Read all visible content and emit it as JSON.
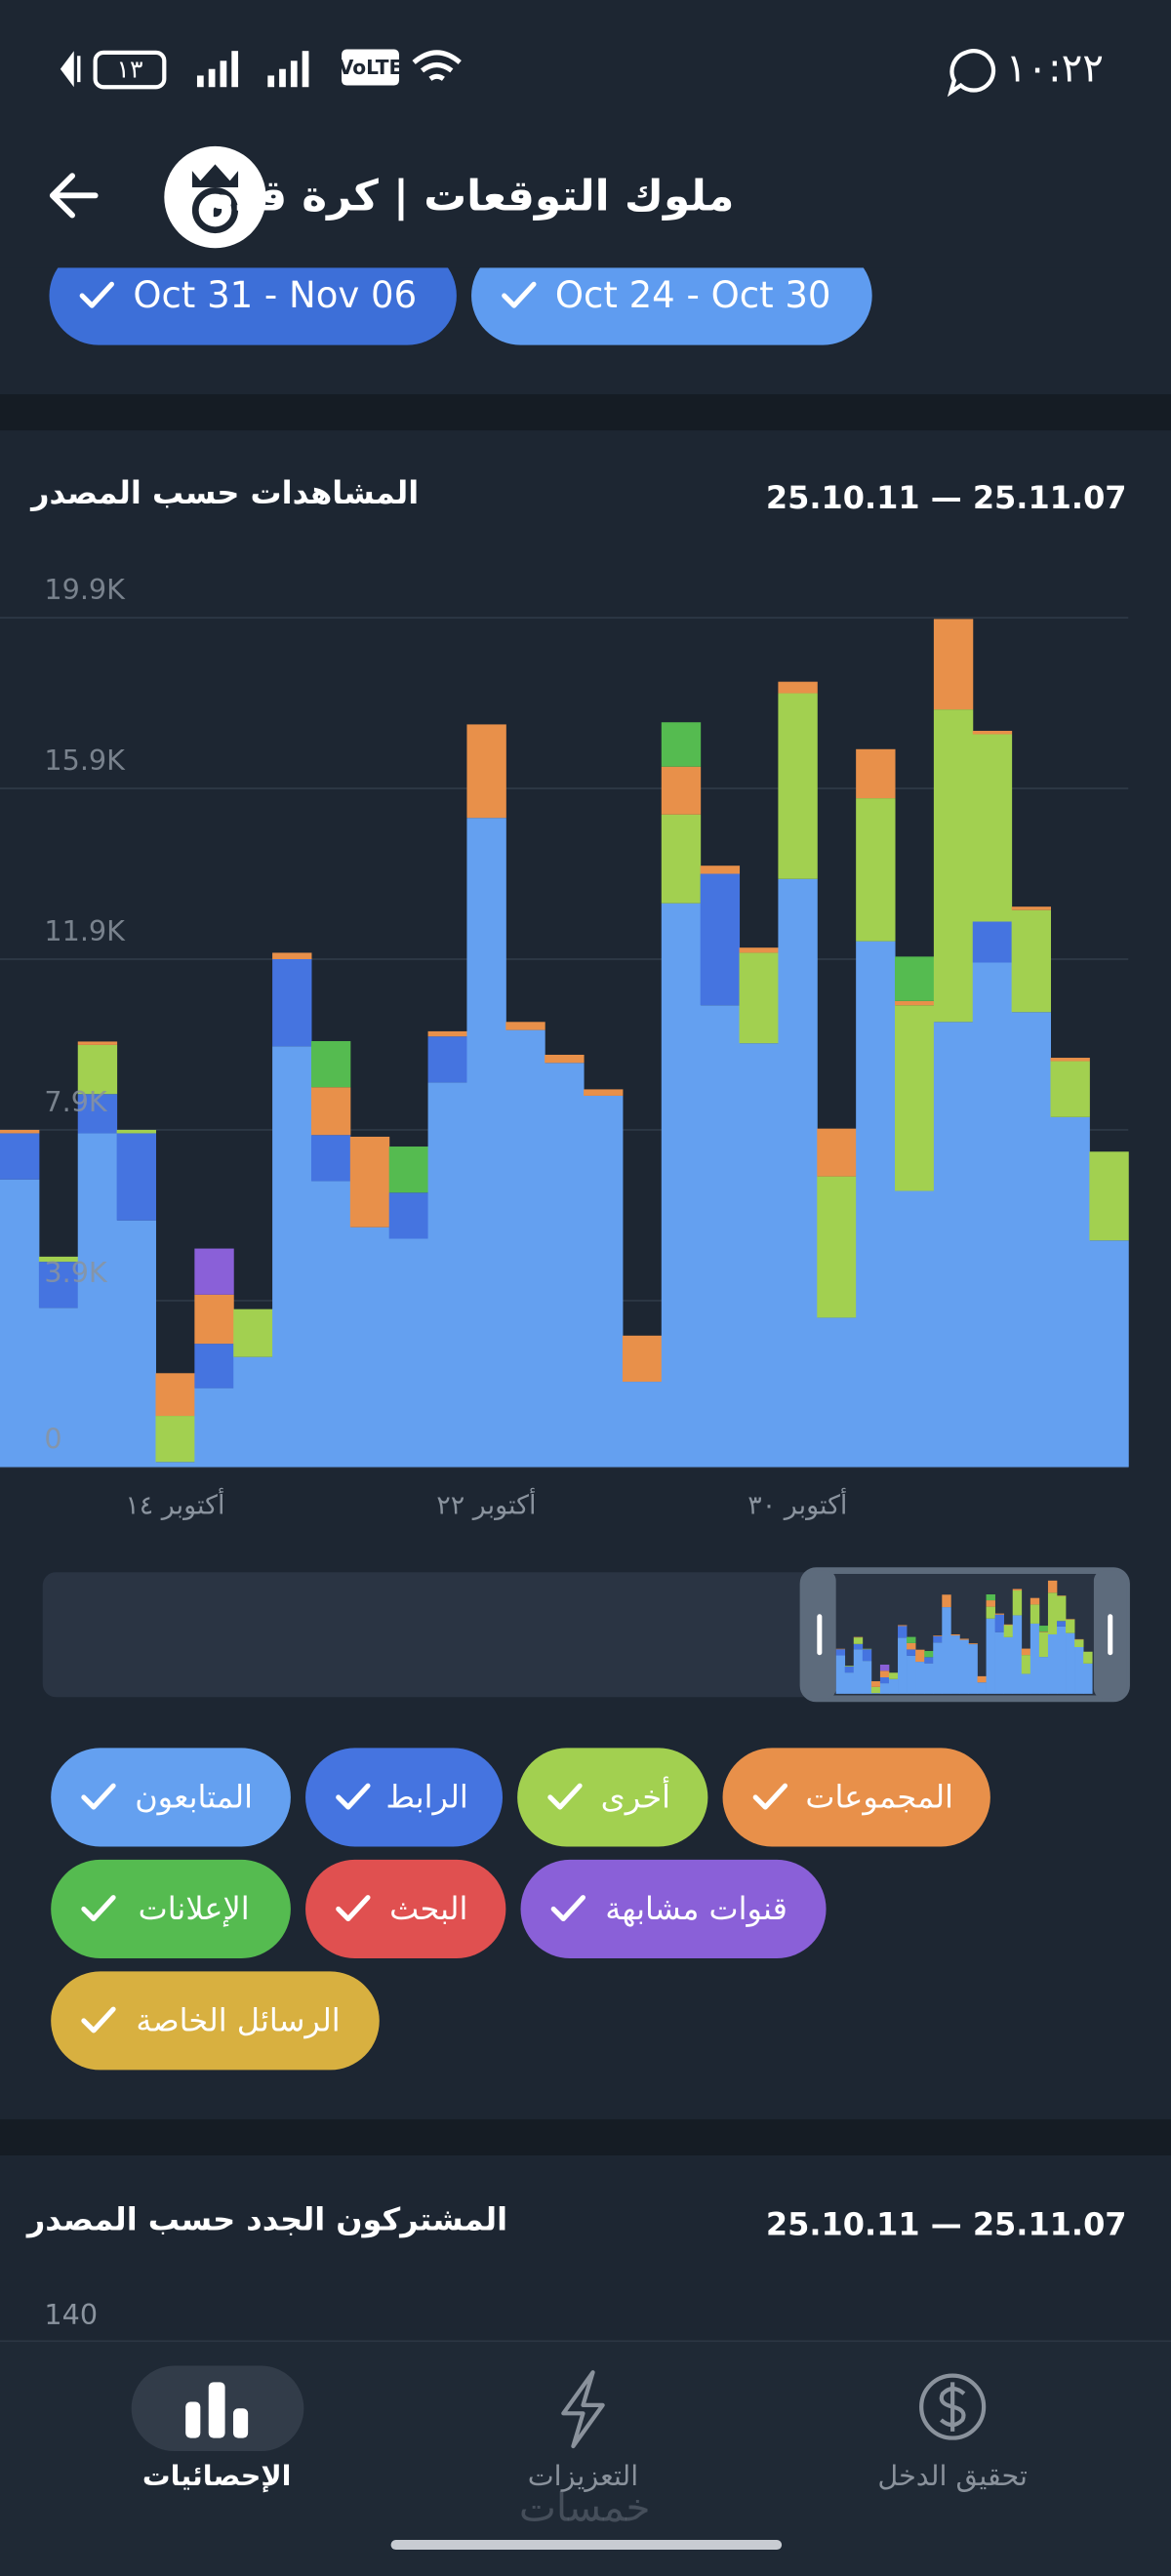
{
  "status_bar": {
    "time": "١٠:٢٢",
    "battery": "١٣",
    "network": "VoLTE"
  },
  "header": {
    "title": "ملوك التوقعات | كرة قدم"
  },
  "date_chips": [
    "Oct 31 - Nov 06",
    "Oct 24 - Oct 30"
  ],
  "views_chart": {
    "type": "bar",
    "stacked": true,
    "title": "المشاهدات حسب المصدر",
    "date_range": "25.10.11 — 25.11.07",
    "categories": [
      null,
      null,
      null,
      null,
      "أكتوبر ١٤",
      null,
      null,
      null,
      null,
      null,
      null,
      null,
      "أكتوبر ٢٢",
      null,
      null,
      null,
      null,
      null,
      null,
      null,
      "أكتوبر ٣٠",
      null,
      null,
      null,
      null,
      null,
      null,
      null,
      null
    ],
    "ylim": [
      0,
      19900
    ],
    "yticks": [
      0,
      {
        "value": 3900,
        "label": "3.9K"
      },
      {
        "value": 7900,
        "label": "7.9K"
      },
      {
        "value": 11900,
        "label": "11.9K"
      },
      {
        "value": 15900,
        "label": "15.9K"
      },
      {
        "value": 19900,
        "label": "19.9K"
      }
    ],
    "grid": true,
    "series": [
      {
        "name": "المتابعون",
        "color": "#64a0f0",
        "values": [
          6740,
          3730,
          7820,
          5780,
          120,
          1850,
          2580,
          9860,
          6700,
          5620,
          5350,
          9010,
          15210,
          10240,
          9470,
          8700,
          2000,
          13210,
          10820,
          9930,
          13780,
          3500,
          12320,
          6470,
          10430,
          11820,
          10660,
          8200,
          5310
        ]
      },
      {
        "name": "الرابط",
        "color": "#4574e0",
        "values": [
          1080,
          1080,
          920,
          2040,
          0,
          1040,
          0,
          2040,
          1080,
          0,
          1080,
          1080,
          0,
          0,
          0,
          0,
          0,
          0,
          3080,
          0,
          0,
          0,
          0,
          0,
          0,
          960,
          0,
          0,
          0
        ]
      },
      {
        "name": "أخرى",
        "color": "#a2d050",
        "values": [
          0,
          120,
          1150,
          80,
          1080,
          0,
          1120,
          0,
          0,
          0,
          0,
          0,
          0,
          0,
          0,
          0,
          0,
          2080,
          0,
          2120,
          4350,
          3310,
          3350,
          4350,
          7320,
          4390,
          2390,
          1310,
          2080
        ]
      },
      {
        "name": "المجموعات",
        "color": "#e8904a",
        "values": [
          80,
          0,
          80,
          0,
          1000,
          1150,
          0,
          150,
          1120,
          2120,
          0,
          120,
          2190,
          190,
          190,
          150,
          1080,
          1120,
          190,
          120,
          270,
          1120,
          1150,
          100,
          2120,
          80,
          80,
          80,
          0
        ]
      },
      {
        "name": "الإعلانات",
        "color": "#55bb50",
        "values": [
          0,
          0,
          0,
          0,
          0,
          0,
          0,
          0,
          1080,
          0,
          1080,
          0,
          0,
          0,
          0,
          0,
          0,
          1040,
          0,
          0,
          0,
          0,
          0,
          1040,
          0,
          0,
          0,
          0,
          0
        ]
      },
      {
        "name": "البحث",
        "color": "#e05050",
        "values": [
          0,
          0,
          0,
          0,
          0,
          0,
          0,
          0,
          0,
          0,
          0,
          0,
          0,
          0,
          0,
          0,
          0,
          0,
          0,
          0,
          0,
          0,
          0,
          0,
          0,
          0,
          0,
          0,
          0
        ]
      },
      {
        "name": "قنوات مشابهة",
        "color": "#8a60d8",
        "values": [
          0,
          0,
          0,
          0,
          0,
          1080,
          0,
          0,
          0,
          0,
          0,
          0,
          0,
          0,
          0,
          0,
          0,
          0,
          0,
          0,
          0,
          0,
          0,
          0,
          0,
          0,
          0,
          0,
          0
        ]
      },
      {
        "name": "الرسائل الخاصة",
        "color": "#d8b040",
        "values": [
          0,
          0,
          0,
          0,
          0,
          0,
          0,
          0,
          0,
          0,
          0,
          0,
          0,
          0,
          0,
          0,
          0,
          0,
          0,
          0,
          0,
          0,
          0,
          0,
          0,
          0,
          0,
          0,
          0
        ]
      }
    ]
  },
  "subscribers_chart": {
    "title": "المشتركون الجدد حسب المصدر",
    "date_range": "25.10.11 — 25.11.07",
    "yticks": [
      140
    ]
  },
  "nav": [
    {
      "label": "الإحصائيات",
      "active": true
    },
    {
      "label": "التعزيزات",
      "active": false
    },
    {
      "label": "تحقيق الدخل",
      "active": false
    }
  ],
  "watermark": "خمسات"
}
